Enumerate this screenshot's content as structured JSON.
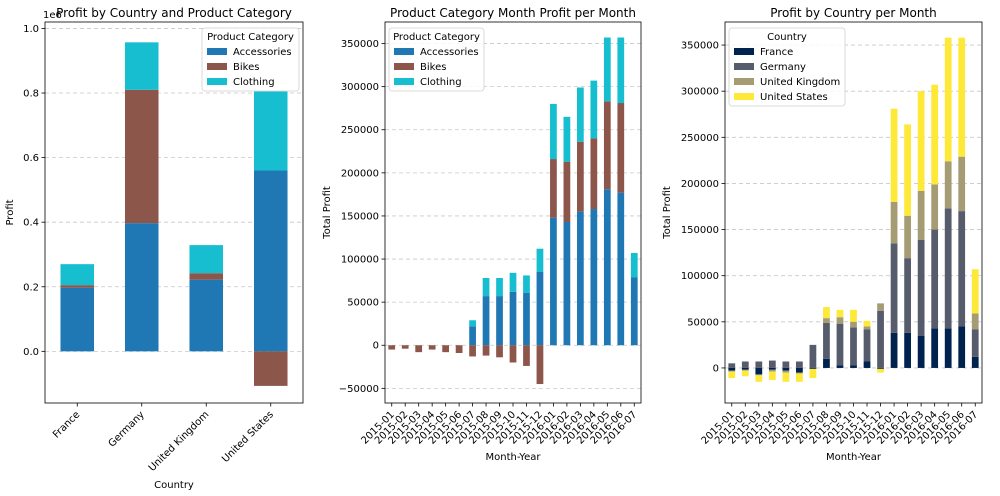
{
  "chart_data": [
    {
      "type": "bar",
      "stacked": true,
      "title": "Profit by Country and Product Category",
      "xlabel": "Country",
      "ylabel": "Profit",
      "offset_label": "1e6",
      "categories": [
        "France",
        "Germany",
        "United Kingdom",
        "United States"
      ],
      "series": [
        {
          "name": "Accessories",
          "color": "#1f77b4",
          "values": [
            0.197,
            0.397,
            0.222,
            0.56
          ]
        },
        {
          "name": "Bikes",
          "color": "#8c564b",
          "values": [
            0.008,
            0.413,
            0.02,
            -0.107
          ]
        },
        {
          "name": "Clothing",
          "color": "#17becf",
          "values": [
            0.065,
            0.147,
            0.087,
            0.245
          ]
        }
      ],
      "ylim": [
        -0.16,
        1.02
      ],
      "yticks": [
        0.0,
        0.2,
        0.4,
        0.6,
        0.8,
        1.0
      ],
      "ytick_labels": [
        "0.0",
        "0.2",
        "0.4",
        "0.6",
        "0.8",
        "1.0"
      ],
      "grid": "y",
      "legend": {
        "title": "Product Category",
        "placement": "top-right"
      }
    },
    {
      "type": "bar",
      "stacked": true,
      "title": "Product Category Month Profit per Month",
      "xlabel": "Month-Year",
      "ylabel": "Total Profit",
      "categories": [
        "2015-01",
        "2015-02",
        "2015-03",
        "2015-04",
        "2015-05",
        "2015-06",
        "2015-07",
        "2015-08",
        "2015-09",
        "2015-10",
        "2015-11",
        "2015-12",
        "2016-01",
        "2016-02",
        "2016-03",
        "2016-04",
        "2016-05",
        "2016-06",
        "2016-07"
      ],
      "series": [
        {
          "name": "Accessories",
          "color": "#1f77b4",
          "values": [
            0,
            0,
            0,
            0,
            0,
            0,
            22000,
            57000,
            57000,
            62000,
            61000,
            85000,
            148000,
            143000,
            155000,
            158000,
            181000,
            177000,
            79000
          ]
        },
        {
          "name": "Bikes",
          "color": "#8c564b",
          "values": [
            -5000,
            -4000,
            -8000,
            -5000,
            -8000,
            -9000,
            -13000,
            -12000,
            -14000,
            -20000,
            -24000,
            -45000,
            68000,
            70000,
            81000,
            82000,
            102000,
            104000,
            0
          ]
        },
        {
          "name": "Clothing",
          "color": "#17becf",
          "values": [
            0,
            0,
            0,
            0,
            0,
            0,
            7000,
            21000,
            21000,
            22000,
            20000,
            27000,
            64000,
            52000,
            63000,
            67000,
            74000,
            76000,
            28000
          ]
        }
      ],
      "ylim": [
        -67000,
        375000
      ],
      "yticks": [
        -50000,
        0,
        50000,
        100000,
        150000,
        200000,
        250000,
        300000,
        350000
      ],
      "ytick_labels": [
        "−50000",
        "0",
        "50000",
        "100000",
        "150000",
        "200000",
        "250000",
        "300000",
        "350000"
      ],
      "grid": "y",
      "legend": {
        "title": "Product Category",
        "placement": "top-left"
      }
    },
    {
      "type": "bar",
      "stacked": true,
      "title": "Profit by Country per Month",
      "xlabel": "Month-Year",
      "ylabel": "Total Profit",
      "categories": [
        "2015-01",
        "2015-02",
        "2015-03",
        "2015-04",
        "2015-05",
        "2015-06",
        "2015-07",
        "2015-08",
        "2015-09",
        "2015-10",
        "2015-11",
        "2015-12",
        "2016-01",
        "2016-02",
        "2016-03",
        "2016-04",
        "2016-05",
        "2016-06",
        "2016-07"
      ],
      "series": [
        {
          "name": "France",
          "color": "#00224e",
          "values": [
            -3000,
            -2000,
            -7000,
            -2000,
            -3000,
            -5000,
            -1000,
            10000,
            3000,
            3000,
            7000,
            -1000,
            38000,
            38000,
            35000,
            43000,
            43000,
            45000,
            12000
          ]
        },
        {
          "name": "Germany",
          "color": "#575c6d",
          "values": [
            5000,
            7000,
            7000,
            8000,
            7000,
            7000,
            25000,
            39000,
            45000,
            41000,
            35000,
            62000,
            97000,
            81000,
            104000,
            107000,
            130000,
            125000,
            30000
          ]
        },
        {
          "name": "United Kingdom",
          "color": "#a59c74",
          "values": [
            -1000,
            -1000,
            -1000,
            -2000,
            -2000,
            -1000,
            0,
            5000,
            7000,
            6000,
            3000,
            8000,
            45000,
            46000,
            53000,
            49000,
            51000,
            59000,
            17000
          ]
        },
        {
          "name": "United States",
          "color": "#fee838",
          "values": [
            -7000,
            -6000,
            -7000,
            -9000,
            -10000,
            -9000,
            -10000,
            12000,
            8000,
            13000,
            6000,
            -4000,
            101000,
            99000,
            108000,
            108000,
            134000,
            129000,
            48000
          ]
        }
      ],
      "ylim": [
        -38000,
        375000
      ],
      "yticks": [
        0,
        50000,
        100000,
        150000,
        200000,
        250000,
        300000,
        350000
      ],
      "ytick_labels": [
        "0",
        "50000",
        "100000",
        "150000",
        "200000",
        "250000",
        "300000",
        "350000"
      ],
      "grid": "y",
      "legend": {
        "title": "Country",
        "placement": "top-left"
      }
    }
  ]
}
